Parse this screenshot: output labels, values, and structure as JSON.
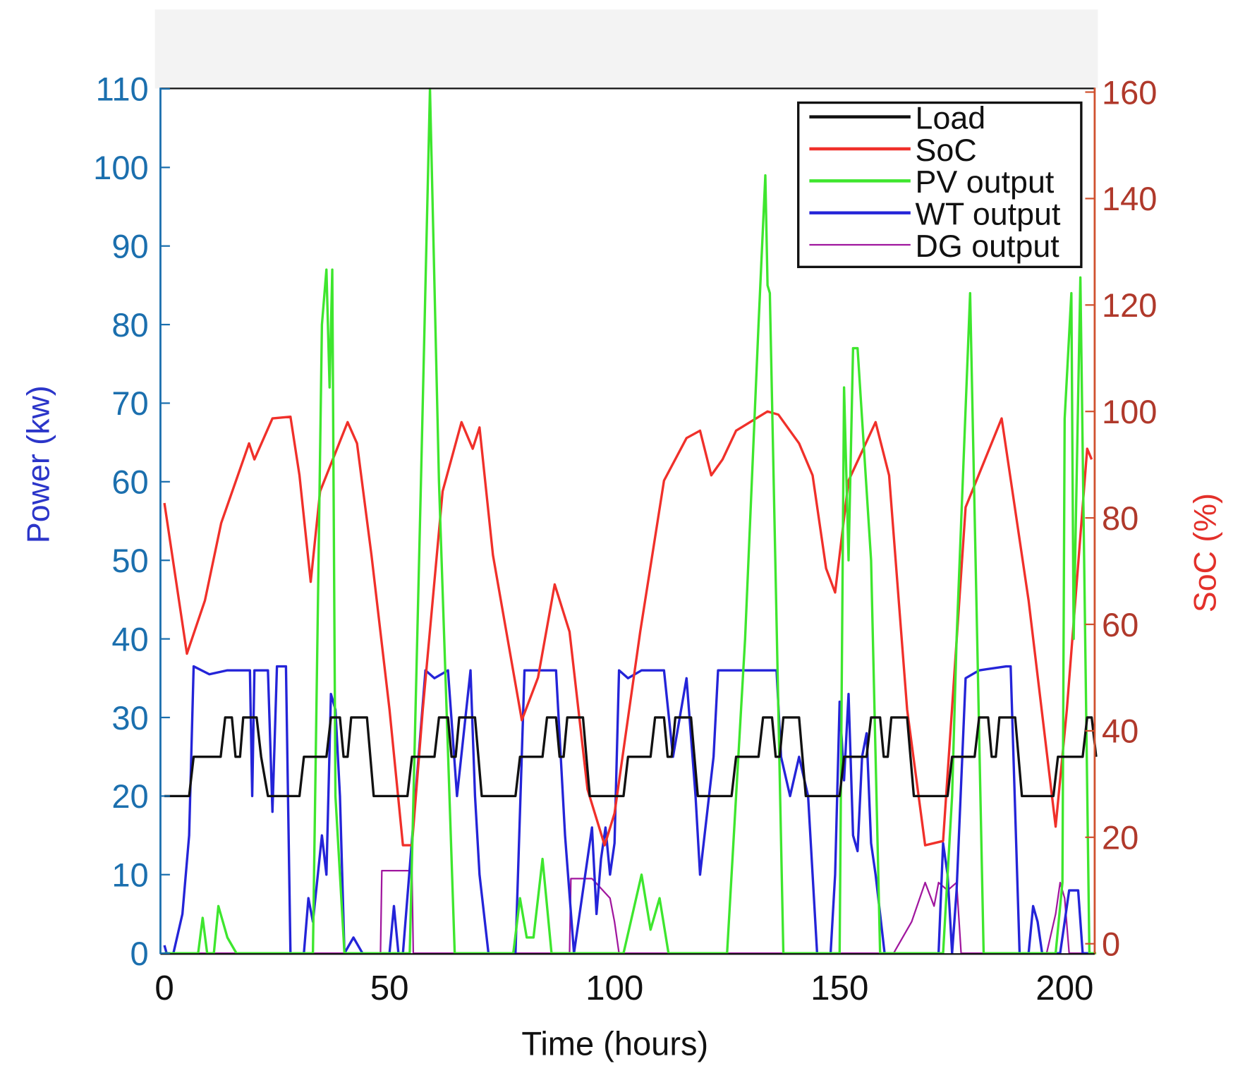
{
  "chart_data": {
    "type": "line",
    "xlabel": "Time (hours)",
    "ylabel_left": "Power (kw)",
    "ylabel_right": "SoC (%)",
    "xlim": [
      0,
      207
    ],
    "ylim_left": [
      0,
      110
    ],
    "ylim_right": [
      0,
      160
    ],
    "x_ticks": [
      "0",
      "50",
      "100",
      "150",
      "200"
    ],
    "x_tick_values": [
      0,
      50,
      100,
      150,
      200
    ],
    "y_ticks_left": [
      "0",
      "10",
      "20",
      "30",
      "40",
      "50",
      "60",
      "70",
      "80",
      "90",
      "100",
      "110"
    ],
    "y_tick_values_left": [
      0,
      10,
      20,
      30,
      40,
      50,
      60,
      70,
      80,
      90,
      100,
      110
    ],
    "y_ticks_right": [
      "0",
      "20",
      "40",
      "60",
      "80",
      "100",
      "120",
      "140",
      "160"
    ],
    "y_tick_values_right": [
      0,
      20,
      40,
      60,
      80,
      100,
      120,
      140,
      160
    ],
    "legend_position": "top-right",
    "colors": {
      "left_axis": "#1b6fae",
      "right_axis": "#b0392b",
      "left_label": "#2b35c9",
      "right_label": "#e3302a"
    },
    "series": [
      {
        "name": "Load",
        "axis": "left",
        "color": "#111111",
        "x": [
          0,
          5.5,
          6.5,
          12.5,
          13.5,
          15,
          15.8,
          16.8,
          17.5,
          20.5,
          21.5,
          23,
          30,
          31,
          36,
          37,
          39,
          39.8,
          40.7,
          41.5,
          45,
          46.5,
          54,
          55,
          60,
          61,
          63,
          63.8,
          64.7,
          65.5,
          69,
          70.5,
          78,
          79,
          84,
          85,
          87,
          87.8,
          88.7,
          89.5,
          93,
          94.5,
          102,
          103,
          108,
          109,
          111,
          111.8,
          112.7,
          113.5,
          117,
          118.5,
          126,
          127,
          132,
          133,
          135,
          135.8,
          136.7,
          137.5,
          141,
          142.5,
          150,
          151,
          156,
          157,
          159,
          159.8,
          160.7,
          161.5,
          165,
          166.5,
          174,
          175,
          180,
          181,
          183,
          183.8,
          184.7,
          185.5,
          189,
          190.5,
          197.5,
          198.5,
          204,
          205,
          206,
          207
        ],
        "y": [
          20,
          20,
          25,
          25,
          30,
          30,
          25,
          25,
          30,
          30,
          25,
          20,
          20,
          25,
          25,
          30,
          30,
          25,
          25,
          30,
          30,
          20,
          20,
          25,
          25,
          30,
          30,
          25,
          25,
          30,
          30,
          20,
          20,
          25,
          25,
          30,
          30,
          25,
          25,
          30,
          30,
          20,
          20,
          25,
          25,
          30,
          30,
          25,
          25,
          30,
          30,
          20,
          20,
          25,
          25,
          30,
          30,
          25,
          25,
          30,
          30,
          20,
          20,
          25,
          25,
          30,
          30,
          25,
          25,
          30,
          30,
          20,
          20,
          25,
          25,
          30,
          30,
          25,
          25,
          30,
          30,
          20,
          20,
          25,
          25,
          30,
          30,
          25
        ]
      },
      {
        "name": "SoC",
        "axis": "right",
        "color": "#f0302a",
        "x": [
          0,
          5,
          9,
          12.6,
          18.8,
          20,
          24,
          28,
          30,
          32.5,
          34.6,
          40.7,
          42.8,
          46,
          50,
          53,
          55,
          57.4,
          61.8,
          66,
          68.5,
          70,
          73,
          79.4,
          83,
          86.7,
          90,
          94,
          97.8,
          100,
          105.7,
          111,
          116,
          119,
          121.5,
          124,
          127,
          134,
          136.4,
          141,
          144,
          147,
          149,
          152,
          158,
          161,
          165,
          169,
          173,
          178,
          186,
          192,
          198,
          200.5,
          205,
          206
        ],
        "y": [
          82.8,
          54.5,
          64.5,
          79,
          94,
          91,
          98.7,
          99,
          88,
          68,
          85,
          98,
          94,
          73,
          44,
          18.5,
          18.5,
          44,
          85,
          98,
          93,
          97,
          73,
          42,
          50,
          67.5,
          58.6,
          29,
          18.5,
          24.5,
          58.6,
          87,
          95,
          96.4,
          88,
          91,
          96.4,
          100,
          99.4,
          94,
          88,
          70.5,
          66,
          87,
          98,
          88,
          44,
          18.5,
          19.3,
          82,
          98.7,
          64.5,
          22,
          44,
          93,
          91
        ]
      },
      {
        "name": "PV output",
        "axis": "left",
        "color": "#3ee62e",
        "x": [
          0,
          7.5,
          8.5,
          9.5,
          11,
          12,
          13,
          14,
          16,
          33,
          35,
          36,
          36.7,
          37.3,
          38,
          40,
          41,
          54.5,
          57,
          59,
          61,
          64.5,
          77.5,
          79,
          80.5,
          82,
          84,
          86,
          102,
          104,
          106,
          108,
          110,
          112,
          125,
          129,
          132,
          133.5,
          134,
          134.5,
          137.5,
          150,
          151,
          152,
          153,
          154,
          157,
          159,
          160,
          173,
          175,
          176,
          179,
          182,
          198,
          199.5,
          200,
          201.5,
          202,
          203.5,
          205.5,
          207
        ],
        "y": [
          0,
          0,
          4.5,
          0,
          0,
          6,
          4,
          2,
          0,
          0,
          80,
          87,
          72,
          87,
          20,
          0,
          0,
          0,
          60,
          110,
          60,
          0,
          0,
          7,
          2,
          2,
          12,
          0,
          0,
          5,
          10,
          3,
          7,
          0,
          0,
          40,
          80,
          99,
          85,
          84,
          0,
          0,
          72,
          50,
          77,
          77,
          50,
          0,
          0,
          0,
          20,
          40,
          84,
          0,
          0,
          9,
          68,
          84,
          40,
          86,
          0,
          0
        ]
      },
      {
        "name": "WT output",
        "axis": "left",
        "color": "#2424d8",
        "x": [
          0,
          0.5,
          2,
          4,
          5.5,
          6.5,
          10,
          14,
          19,
          19.5,
          20,
          23,
          24,
          25,
          27,
          28,
          31,
          32,
          33,
          35,
          36,
          37,
          38,
          39,
          40,
          42,
          44,
          47,
          50,
          51,
          52,
          53,
          58,
          60,
          63,
          65,
          68,
          69,
          70,
          72,
          73,
          76,
          78,
          80,
          84,
          87,
          89,
          91,
          93,
          95,
          96,
          97,
          98,
          99,
          100,
          101,
          103,
          106,
          111,
          113,
          116,
          118,
          119,
          121,
          122,
          123,
          125,
          130,
          136,
          137,
          139,
          141,
          143,
          145,
          148,
          149,
          150,
          151,
          152,
          153,
          154,
          155,
          156,
          157,
          158,
          160,
          163,
          172,
          173,
          174,
          175,
          176,
          178,
          181,
          187,
          188,
          190,
          192,
          193,
          194,
          195,
          199,
          201,
          203,
          204,
          205,
          206
        ],
        "y": [
          1,
          0,
          0,
          5,
          15,
          36.5,
          35.5,
          36,
          36,
          20,
          36,
          36,
          18,
          36.5,
          36.5,
          0,
          0,
          7,
          4,
          15,
          10,
          33,
          31,
          20,
          0,
          2,
          0,
          0,
          0,
          6,
          0,
          0,
          36,
          35,
          36,
          20,
          36,
          20,
          10,
          0,
          0,
          0,
          0,
          36,
          36,
          36,
          15,
          0,
          8,
          16,
          5,
          12,
          16,
          10,
          14,
          36,
          35,
          36,
          36,
          25,
          35,
          20,
          10,
          20,
          25,
          36,
          36,
          36,
          36,
          25,
          20,
          25,
          20,
          0,
          0,
          10,
          32,
          22,
          33,
          15,
          13,
          25,
          28,
          14,
          10,
          0,
          0,
          0,
          14,
          10,
          0,
          8,
          35,
          36,
          36.5,
          36.5,
          0,
          0,
          6,
          4,
          0,
          0,
          8,
          8,
          0,
          0,
          0
        ]
      },
      {
        "name": "DG output",
        "axis": "left",
        "color": "#a0169e",
        "x": [
          0,
          48,
          48.3,
          55,
          55.3,
          90,
          90.3,
          95,
          99,
          100,
          101,
          162,
          166,
          169,
          171,
          172,
          174,
          176,
          177,
          196,
          198,
          199,
          200,
          201,
          207
        ],
        "y": [
          0,
          0,
          10.5,
          10.5,
          0,
          0,
          9.5,
          9.5,
          7,
          4,
          0,
          0,
          4,
          9,
          6,
          9,
          8,
          9,
          0,
          0,
          5,
          9,
          7,
          0,
          0
        ]
      }
    ]
  }
}
